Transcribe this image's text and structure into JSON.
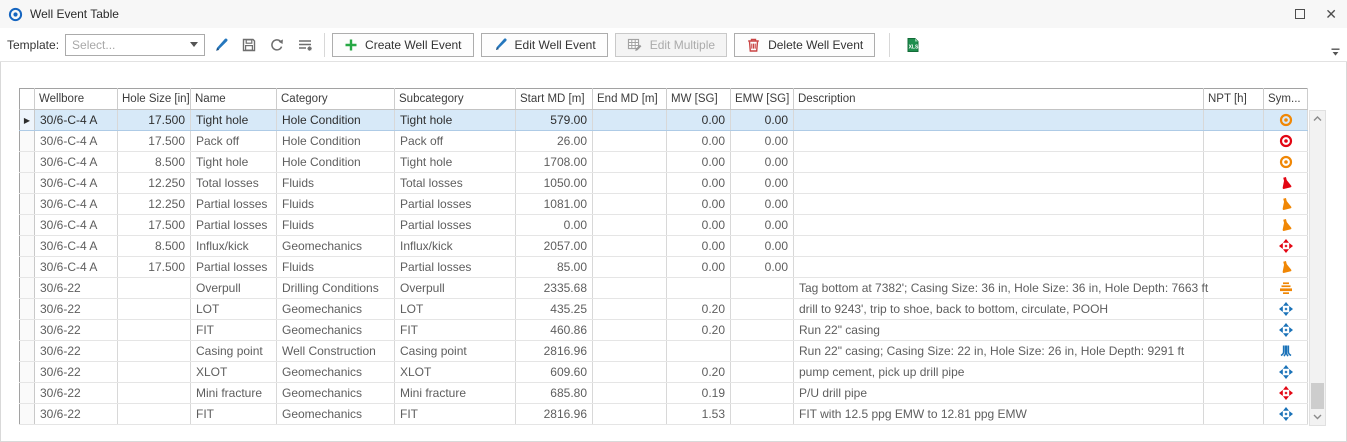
{
  "window": {
    "title": "Well Event Table"
  },
  "toolbar": {
    "template_label": "Template:",
    "template_placeholder": "Select...",
    "create_label": "Create Well Event",
    "edit_label": "Edit Well Event",
    "edit_multiple_label": "Edit Multiple",
    "delete_label": "Delete Well Event"
  },
  "colors": {
    "orange": "#F08705",
    "red": "#E30613",
    "blue": "#1A72B8",
    "selected_row_bg": "#D7E9F8",
    "create_plus_green": "#26A844",
    "pencil_blue": "#2577BD",
    "trash_red": "#C94444",
    "excel_green": "#1E8F4E",
    "title_icon_blue": "#1565C0"
  },
  "table": {
    "columns": [
      "Wellbore",
      "Hole Size [in]",
      "Name",
      "Category",
      "Subcategory",
      "Start MD [m]",
      "End MD [m]",
      "MW [SG]",
      "EMW [SG]",
      "Description",
      "NPT [h]",
      "Sym..."
    ],
    "rows": [
      {
        "selected": true,
        "wellbore": "30/6-C-4 A",
        "hole_size": "17.500",
        "name": "Tight hole",
        "category": "Hole Condition",
        "subcategory": "Tight hole",
        "start_md": "579.00",
        "end_md": "",
        "mw": "0.00",
        "emw": "0.00",
        "description": "",
        "npt": "",
        "symbol": "bullseye",
        "symbol_color": "orange"
      },
      {
        "selected": false,
        "wellbore": "30/6-C-4 A",
        "hole_size": "17.500",
        "name": "Pack off",
        "category": "Hole Condition",
        "subcategory": "Pack off",
        "start_md": "26.00",
        "end_md": "",
        "mw": "0.00",
        "emw": "0.00",
        "description": "",
        "npt": "",
        "symbol": "bullseye",
        "symbol_color": "red"
      },
      {
        "selected": false,
        "wellbore": "30/6-C-4 A",
        "hole_size": "8.500",
        "name": "Tight hole",
        "category": "Hole Condition",
        "subcategory": "Tight hole",
        "start_md": "1708.00",
        "end_md": "",
        "mw": "0.00",
        "emw": "0.00",
        "description": "",
        "npt": "",
        "symbol": "bullseye",
        "symbol_color": "orange"
      },
      {
        "selected": false,
        "wellbore": "30/6-C-4 A",
        "hole_size": "12.250",
        "name": "Total losses",
        "category": "Fluids",
        "subcategory": "Total losses",
        "start_md": "1050.00",
        "end_md": "",
        "mw": "0.00",
        "emw": "0.00",
        "description": "",
        "npt": "",
        "symbol": "flask",
        "symbol_color": "red"
      },
      {
        "selected": false,
        "wellbore": "30/6-C-4 A",
        "hole_size": "12.250",
        "name": "Partial losses",
        "category": "Fluids",
        "subcategory": "Partial losses",
        "start_md": "1081.00",
        "end_md": "",
        "mw": "0.00",
        "emw": "0.00",
        "description": "",
        "npt": "",
        "symbol": "flask",
        "symbol_color": "orange"
      },
      {
        "selected": false,
        "wellbore": "30/6-C-4 A",
        "hole_size": "17.500",
        "name": "Partial losses",
        "category": "Fluids",
        "subcategory": "Partial losses",
        "start_md": "0.00",
        "end_md": "",
        "mw": "0.00",
        "emw": "0.00",
        "description": "",
        "npt": "",
        "symbol": "flask",
        "symbol_color": "orange"
      },
      {
        "selected": false,
        "wellbore": "30/6-C-4 A",
        "hole_size": "8.500",
        "name": "Influx/kick",
        "category": "Geomechanics",
        "subcategory": "Influx/kick",
        "start_md": "2057.00",
        "end_md": "",
        "mw": "0.00",
        "emw": "0.00",
        "description": "",
        "npt": "",
        "symbol": "cross",
        "symbol_color": "red"
      },
      {
        "selected": false,
        "wellbore": "30/6-C-4 A",
        "hole_size": "17.500",
        "name": "Partial losses",
        "category": "Fluids",
        "subcategory": "Partial losses",
        "start_md": "85.00",
        "end_md": "",
        "mw": "0.00",
        "emw": "0.00",
        "description": "",
        "npt": "",
        "symbol": "flask",
        "symbol_color": "orange"
      },
      {
        "selected": false,
        "wellbore": "30/6-22",
        "hole_size": "",
        "name": "Overpull",
        "category": "Drilling Conditions",
        "subcategory": "Overpull",
        "start_md": "2335.68",
        "end_md": "",
        "mw": "",
        "emw": "",
        "description": "Tag bottom at 7382'; Casing Size: 36 in, Hole Size: 36 in, Hole Depth: 7663 ft",
        "npt": "",
        "symbol": "overpull",
        "symbol_color": "orange"
      },
      {
        "selected": false,
        "wellbore": "30/6-22",
        "hole_size": "",
        "name": "LOT",
        "category": "Geomechanics",
        "subcategory": "LOT",
        "start_md": "435.25",
        "end_md": "",
        "mw": "0.20",
        "emw": "",
        "description": "drill to 9243', trip to shoe, back to bottom, circulate, POOH",
        "npt": "",
        "symbol": "cross",
        "symbol_color": "blue"
      },
      {
        "selected": false,
        "wellbore": "30/6-22",
        "hole_size": "",
        "name": "FIT",
        "category": "Geomechanics",
        "subcategory": "FIT",
        "start_md": "460.86",
        "end_md": "",
        "mw": "0.20",
        "emw": "",
        "description": "Run 22\" casing",
        "npt": "",
        "symbol": "cross",
        "symbol_color": "blue"
      },
      {
        "selected": false,
        "wellbore": "30/6-22",
        "hole_size": "",
        "name": "Casing point",
        "category": "Well Construction",
        "subcategory": "Casing point",
        "start_md": "2816.96",
        "end_md": "",
        "mw": "",
        "emw": "",
        "description": "Run 22\" casing; Casing Size: 22 in, Hole Size: 26 in, Hole Depth: 9291 ft",
        "npt": "",
        "symbol": "casing",
        "symbol_color": "blue"
      },
      {
        "selected": false,
        "wellbore": "30/6-22",
        "hole_size": "",
        "name": "XLOT",
        "category": "Geomechanics",
        "subcategory": "XLOT",
        "start_md": "609.60",
        "end_md": "",
        "mw": "0.20",
        "emw": "",
        "description": "pump cement, pick up drill pipe",
        "npt": "",
        "symbol": "cross",
        "symbol_color": "blue"
      },
      {
        "selected": false,
        "wellbore": "30/6-22",
        "hole_size": "",
        "name": "Mini fracture",
        "category": "Geomechanics",
        "subcategory": "Mini fracture",
        "start_md": "685.80",
        "end_md": "",
        "mw": "0.19",
        "emw": "",
        "description": "P/U drill pipe",
        "npt": "",
        "symbol": "cross",
        "symbol_color": "red"
      },
      {
        "selected": false,
        "wellbore": "30/6-22",
        "hole_size": "",
        "name": "FIT",
        "category": "Geomechanics",
        "subcategory": "FIT",
        "start_md": "2816.96",
        "end_md": "",
        "mw": "1.53",
        "emw": "",
        "description": "FIT with 12.5 ppg EMW to 12.81 ppg EMW",
        "npt": "",
        "symbol": "cross",
        "symbol_color": "blue"
      }
    ]
  }
}
